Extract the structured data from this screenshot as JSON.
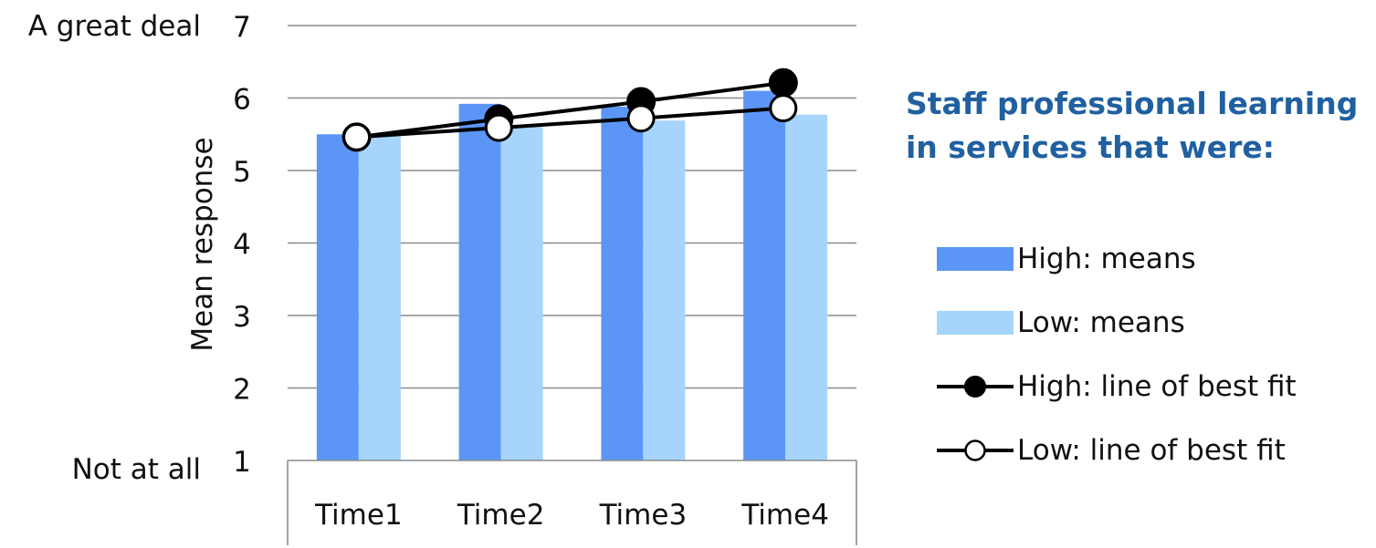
{
  "chart_data": {
    "type": "bar",
    "categories": [
      "Time1",
      "Time2",
      "Time3",
      "Time4"
    ],
    "series": [
      {
        "name": "High: means",
        "kind": "bar",
        "color": "#5b96f7",
        "values": [
          5.5,
          5.92,
          5.88,
          6.1
        ]
      },
      {
        "name": "Low: means",
        "kind": "bar",
        "color": "#a7d4fd",
        "values": [
          5.47,
          5.6,
          5.69,
          5.77
        ]
      },
      {
        "name": "High: line of best fit",
        "kind": "line",
        "marker": "filled",
        "color": "#000000",
        "values": [
          5.46,
          5.71,
          5.95,
          6.21
        ]
      },
      {
        "name": "Low: line of best fit",
        "kind": "line",
        "marker": "open",
        "color": "#000000",
        "values": [
          5.46,
          5.59,
          5.72,
          5.86
        ]
      }
    ],
    "ylabel": "Mean response",
    "xlabel": "",
    "ylim": [
      1,
      7
    ],
    "yticks": [
      1,
      2,
      3,
      4,
      5,
      6,
      7
    ],
    "yaxis_anchor_labels": {
      "top": "A great deal",
      "bottom": "Not at all"
    },
    "grid": true,
    "legend_position": "right",
    "legend_title": [
      "Staff professional learning",
      "in services that were:"
    ]
  }
}
